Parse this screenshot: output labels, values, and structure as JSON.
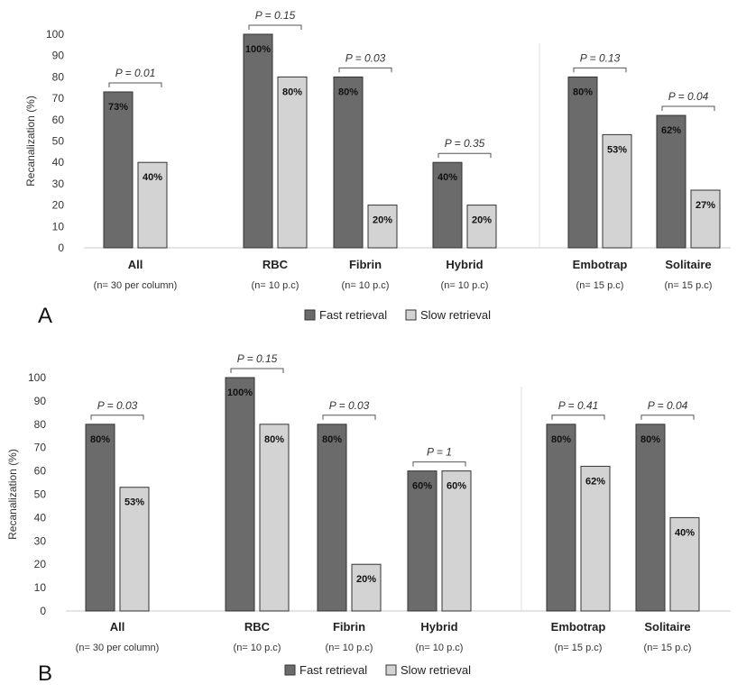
{
  "colors": {
    "fast": "#6b6b6b",
    "slow": "#d3d3d3"
  },
  "legend": {
    "fast_label": "Fast retrieval",
    "slow_label": "Slow retrieval"
  },
  "chart_data": [
    {
      "type": "bar",
      "panel_label": "A",
      "ylabel": "Recanalization (%)",
      "ylim": [
        0,
        100
      ],
      "yticks": [
        0,
        10,
        20,
        30,
        40,
        50,
        60,
        70,
        80,
        90,
        100
      ],
      "categories": [
        "All",
        "RBC",
        "Fibrin",
        "Hybrid",
        "Embotrap",
        "Solitaire"
      ],
      "sublabels": [
        "(n= 30 per column)",
        "(n= 10 p.c)",
        "(n= 10 p.c)",
        "(n= 10 p.c)",
        "(n= 15 p.c)",
        "(n= 15 p.c)"
      ],
      "series": [
        {
          "name": "Fast retrieval",
          "values": [
            73,
            100,
            80,
            40,
            80,
            62
          ]
        },
        {
          "name": "Slow retrieval",
          "values": [
            40,
            80,
            20,
            20,
            53,
            27
          ]
        }
      ],
      "data_labels": {
        "fast": [
          "73%",
          "100%",
          "80%",
          "40%",
          "80%",
          "62%"
        ],
        "slow": [
          "40%",
          "80%",
          "20%",
          "20%",
          "53%",
          "27%"
        ]
      },
      "p_values": [
        "P = 0.01",
        "P = 0.15",
        "P = 0.03",
        "P = 0.35",
        "P = 0.13",
        "P = 0.04"
      ],
      "legend_position": "bottom"
    },
    {
      "type": "bar",
      "panel_label": "B",
      "ylabel": "Recanalization (%)",
      "ylim": [
        0,
        100
      ],
      "yticks": [
        0,
        10,
        20,
        30,
        40,
        50,
        60,
        70,
        80,
        90,
        100
      ],
      "categories": [
        "All",
        "RBC",
        "Fibrin",
        "Hybrid",
        "Embotrap",
        "Solitaire"
      ],
      "sublabels": [
        "(n= 30 per column)",
        "(n= 10 p.c)",
        "(n= 10 p.c)",
        "(n= 10 p.c)",
        "(n= 15 p.c)",
        "(n= 15 p.c)"
      ],
      "series": [
        {
          "name": "Fast retrieval",
          "values": [
            80,
            100,
            80,
            60,
            80,
            80
          ]
        },
        {
          "name": "Slow retrieval",
          "values": [
            53,
            80,
            20,
            60,
            62,
            40
          ]
        }
      ],
      "data_labels": {
        "fast": [
          "80%",
          "100%",
          "80%",
          "60%",
          "80%",
          "80%"
        ],
        "slow": [
          "53%",
          "80%",
          "20%",
          "60%",
          "62%",
          "40%"
        ]
      },
      "p_values": [
        "P = 0.03",
        "P = 0.15",
        "P = 0.03",
        "P = 1",
        "P = 0.41",
        "P = 0.04"
      ],
      "legend_position": "bottom"
    }
  ]
}
